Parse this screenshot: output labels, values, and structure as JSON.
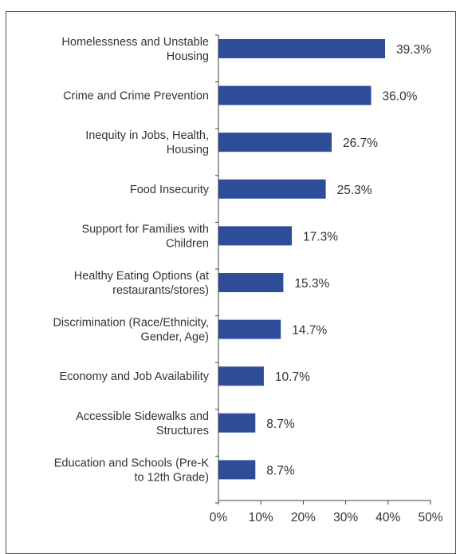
{
  "chart_data": {
    "type": "bar",
    "orientation": "horizontal",
    "categories": [
      [
        "Homelessness and Unstable",
        "Housing"
      ],
      [
        "Crime and Crime Prevention"
      ],
      [
        "Inequity in Jobs, Health,",
        "Housing"
      ],
      [
        "Food Insecurity"
      ],
      [
        "Support for Families with",
        "Children"
      ],
      [
        "Healthy Eating Options (at",
        "restaurants/stores)"
      ],
      [
        "Discrimination (Race/Ethnicity,",
        "Gender, Age)"
      ],
      [
        "Economy and Job Availability"
      ],
      [
        "Accessible Sidewalks and",
        "Structures"
      ],
      [
        "Education and Schools (Pre-K",
        "to 12th Grade)"
      ]
    ],
    "values": [
      39.3,
      36.0,
      26.7,
      25.3,
      17.3,
      15.3,
      14.7,
      10.7,
      8.7,
      8.7
    ],
    "data_labels": [
      "39.3%",
      "36.0%",
      "26.7%",
      "25.3%",
      "17.3%",
      "15.3%",
      "14.7%",
      "10.7%",
      "8.7%",
      "8.7%"
    ],
    "xlim": [
      0,
      50
    ],
    "x_ticks": [
      0,
      10,
      20,
      30,
      40,
      50
    ],
    "x_tick_labels": [
      "0%",
      "10%",
      "20%",
      "30%",
      "40%",
      "50%"
    ],
    "title": "",
    "xlabel": "",
    "ylabel": "",
    "grid": false,
    "legend": "none",
    "colors": {
      "bar": "#2e4d99",
      "axis": "#404040",
      "text": "#333333"
    }
  }
}
